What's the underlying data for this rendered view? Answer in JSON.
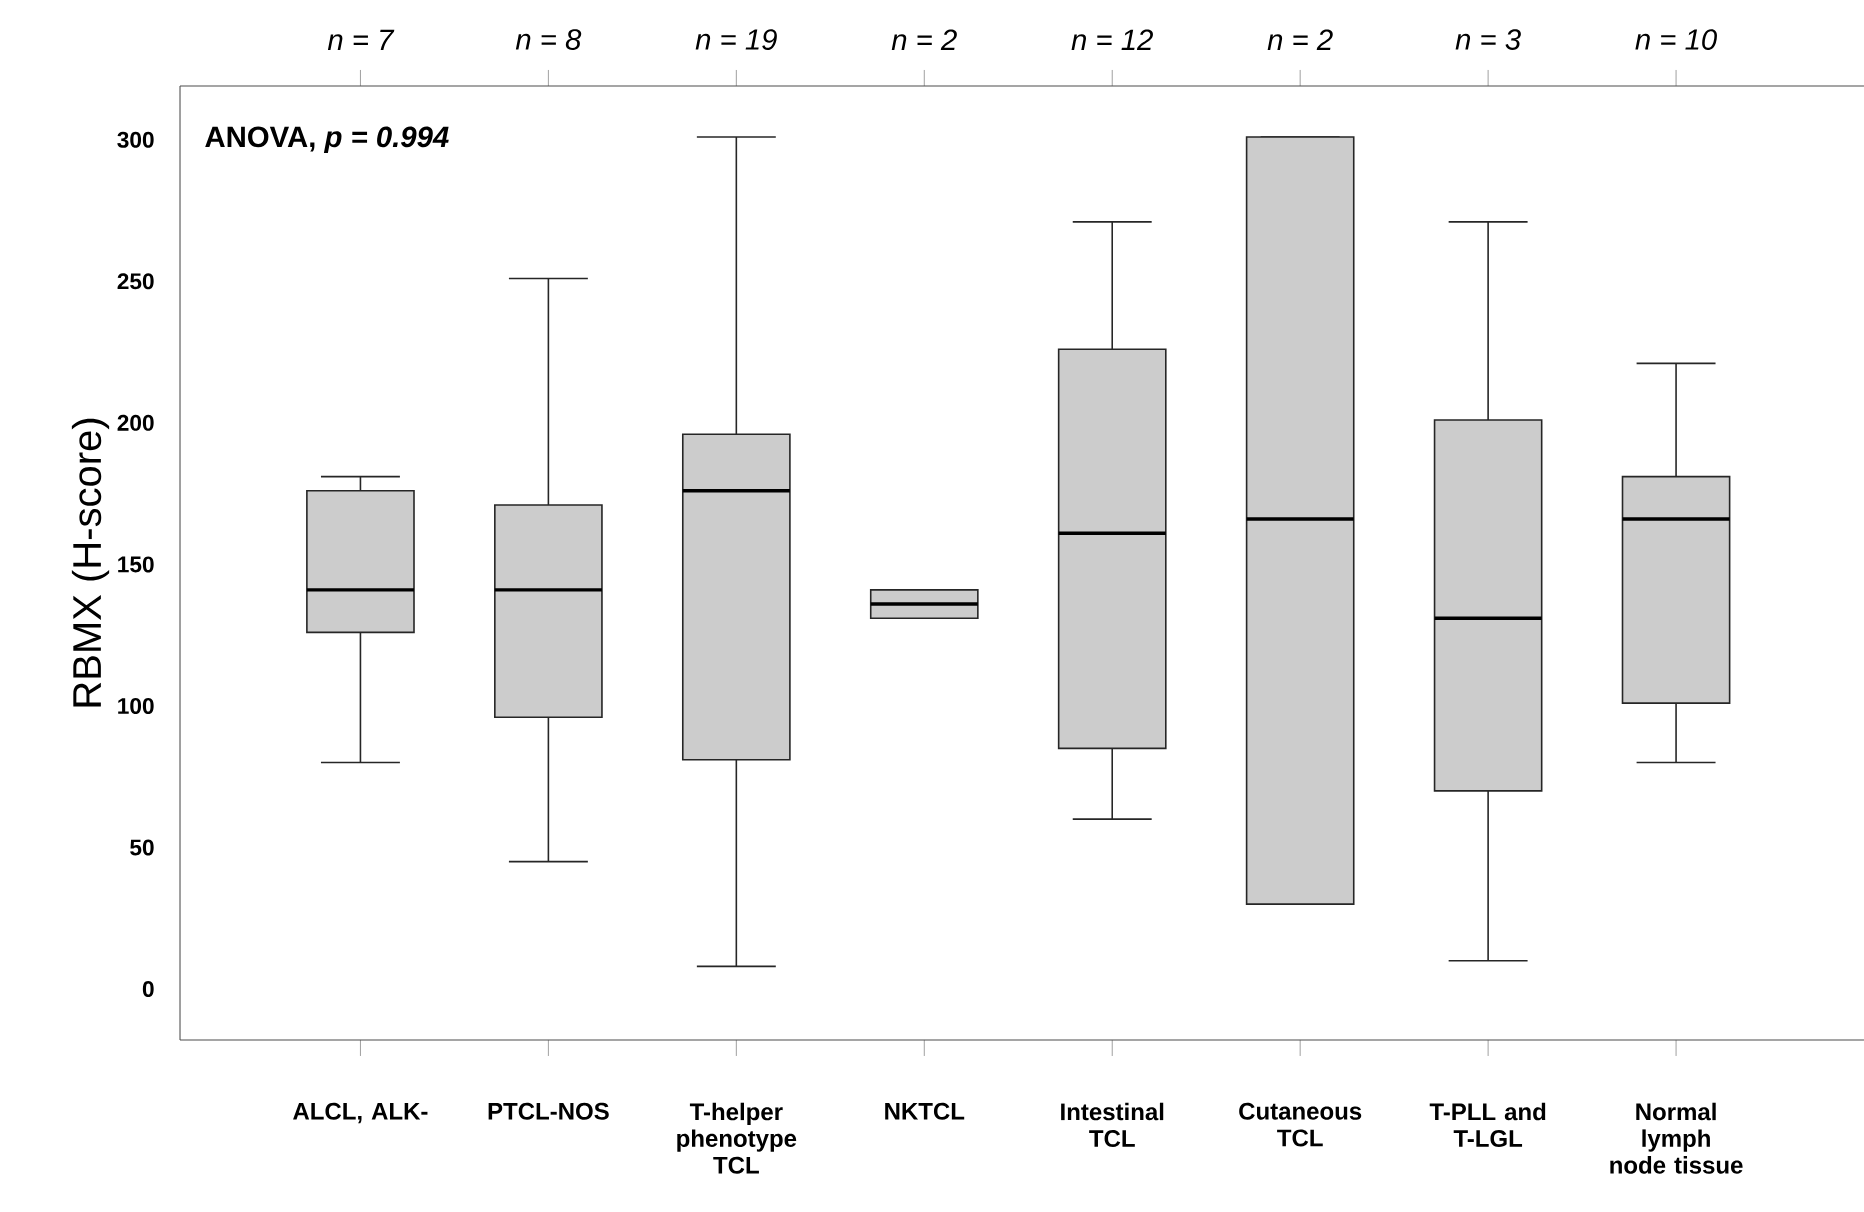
{
  "chart_data": {
    "type": "box",
    "ylabel": "RBMX (H-score)",
    "categories": [
      "ALCL, ALK-",
      "PTCL-NOS",
      "T-helper phenotype TCL",
      "NKTCL",
      "Intestinal TCL",
      "Cutaneous TCL",
      "T-PLL and T-LGL",
      "Normal lymph node tissue"
    ],
    "series": [
      {
        "color": "#cccccc",
        "boxes": [
          {
            "low": 80,
            "q1": 126,
            "median": 141,
            "q3": 176,
            "high": 181
          },
          {
            "low": 45,
            "q1": 96,
            "median": 141,
            "q3": 171,
            "high": 251
          },
          {
            "low": 8,
            "q1": 81,
            "median": 176,
            "q3": 196,
            "high": 301
          },
          {
            "low": 131,
            "q1": 131,
            "median": 136,
            "q3": 141,
            "high": 141
          },
          {
            "low": 60,
            "q1": 85,
            "median": 161,
            "q3": 226,
            "high": 271
          },
          {
            "low": 30,
            "q1": 30,
            "median": 166,
            "q3": 301,
            "high": 301
          },
          {
            "low": 10,
            "q1": 70,
            "median": 131,
            "q3": 201,
            "high": 271
          },
          {
            "low": 80,
            "q1": 101,
            "median": 166,
            "q3": 181,
            "high": 221
          }
        ]
      }
    ],
    "ylim": [
      -18,
      319
    ],
    "yticks": [
      0,
      50,
      100,
      150,
      200,
      250,
      300
    ],
    "annotations": [
      "ANOVA, *p = 0.994*",
      "n = 7",
      "n = 8",
      "n = 19",
      "n = 2",
      "n = 12",
      "n = 2",
      "n = 3",
      "n = 10"
    ]
  }
}
